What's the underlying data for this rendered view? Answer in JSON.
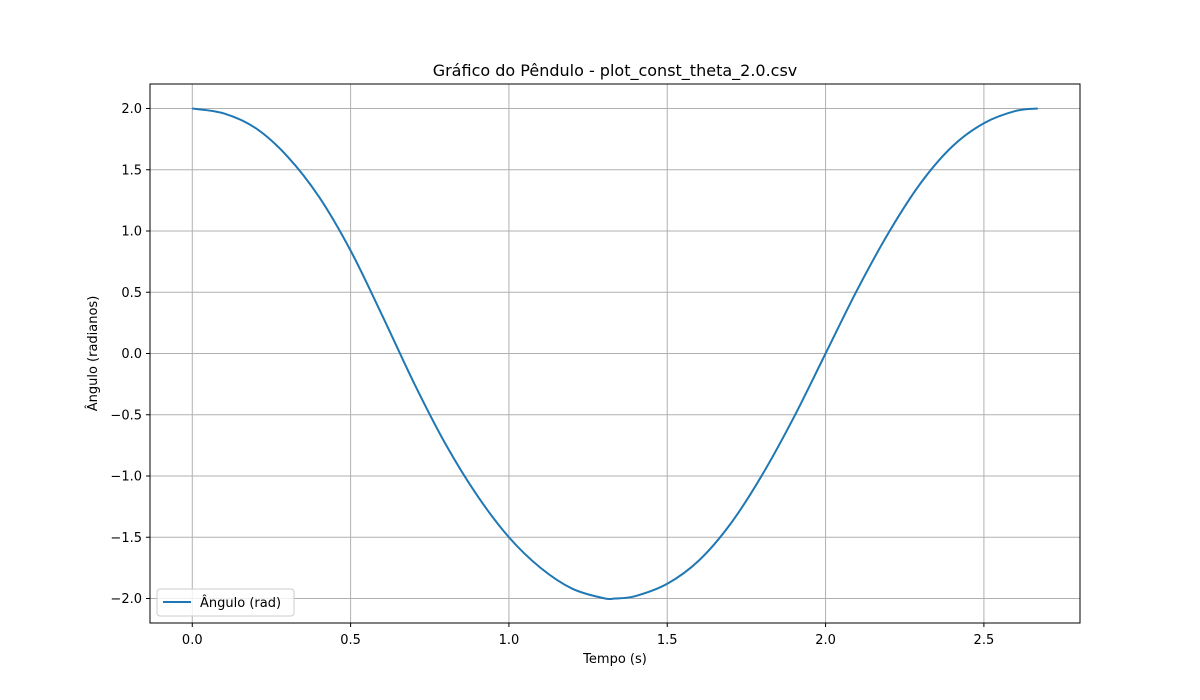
{
  "chart_data": {
    "type": "line",
    "title": "Gráfico do Pêndulo - plot_const_theta_2.0.csv",
    "xlabel": "Tempo (s)",
    "ylabel": "Ângulo (radianos)",
    "xlim": [
      -0.1335,
      2.8035
    ],
    "ylim": [
      -2.2,
      2.2
    ],
    "x_ticks": [
      0.0,
      0.5,
      1.0,
      1.5,
      2.0,
      2.5
    ],
    "x_tick_labels": [
      "0.0",
      "0.5",
      "1.0",
      "1.5",
      "2.0",
      "2.5"
    ],
    "y_ticks": [
      2.0,
      1.5,
      1.0,
      0.5,
      0.0,
      -0.5,
      -1.0,
      -1.5,
      -2.0
    ],
    "y_tick_labels": [
      "2.0",
      "1.5",
      "1.0",
      "0.5",
      "0.0",
      "−0.5",
      "−1.0",
      "−1.5",
      "−2.0"
    ],
    "grid": true,
    "legend_position": "lower-left",
    "series": [
      {
        "name": "Ângulo (rad)",
        "color": "#1f77b4",
        "x": [
          0.0,
          0.1,
          0.2,
          0.3,
          0.4,
          0.5,
          0.6,
          0.7,
          0.8,
          0.9,
          1.0,
          1.1,
          1.2,
          1.3,
          1.335,
          1.4,
          1.5,
          1.6,
          1.7,
          1.8,
          1.9,
          2.0,
          2.1,
          2.2,
          2.3,
          2.4,
          2.5,
          2.6,
          2.67
        ],
        "y": [
          2.0,
          1.96,
          1.84,
          1.61,
          1.28,
          0.84,
          0.31,
          -0.24,
          -0.74,
          -1.16,
          -1.5,
          -1.75,
          -1.92,
          -1.998,
          -2.0,
          -1.98,
          -1.88,
          -1.69,
          -1.39,
          -0.99,
          -0.52,
          0.0,
          0.52,
          0.99,
          1.39,
          1.69,
          1.88,
          1.98,
          2.0
        ]
      }
    ]
  }
}
